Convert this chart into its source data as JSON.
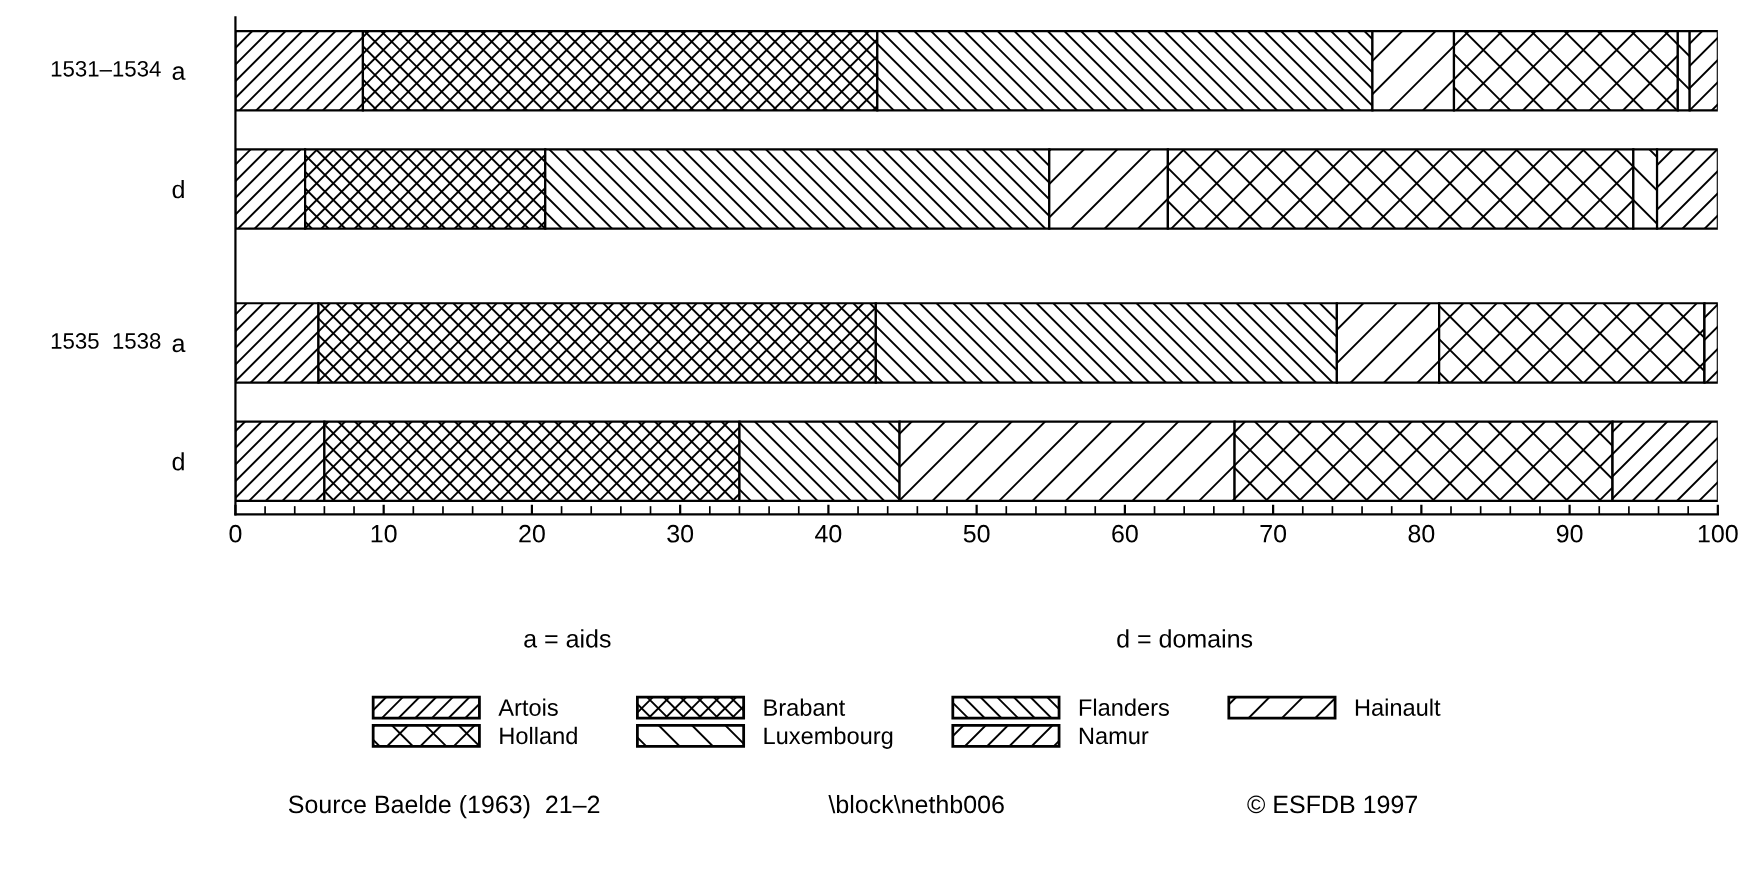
{
  "chart_data": {
    "type": "bar",
    "orientation": "horizontal",
    "stacked": true,
    "categories": [
      "a",
      "d",
      "a",
      "d"
    ],
    "series": [
      {
        "name": "Artois",
        "color": "#000000",
        "values": [
          8.6,
          4.7,
          5.6,
          6.0
        ]
      },
      {
        "name": "Brabant",
        "color": "#000000",
        "values": [
          34.7,
          16.2,
          37.6,
          28.0
        ]
      },
      {
        "name": "Flanders",
        "color": "#000000",
        "values": [
          33.4,
          34.0,
          31.1,
          10.8
        ]
      },
      {
        "name": "Hainault",
        "color": "#000000",
        "values": [
          5.5,
          8.0,
          6.9,
          22.6
        ]
      },
      {
        "name": "Holland",
        "color": "#000000",
        "values": [
          15.1,
          31.4,
          17.9,
          25.5
        ]
      },
      {
        "name": "Luxembourg",
        "color": "#000000",
        "values": [
          0.8,
          1.6,
          0,
          0
        ]
      },
      {
        "name": "Namur",
        "color": "#000000",
        "values": [
          1.9,
          4.1,
          0.9,
          7.1
        ]
      }
    ],
    "xlim": [
      0,
      100
    ],
    "xticks": [
      0,
      10,
      20,
      30,
      40,
      50,
      60,
      70,
      80,
      90,
      100
    ],
    "grid": false,
    "legend": "bottom",
    "annotations": [
      "1531–1534",
      "1535  1538",
      "a = aids",
      "d = domains",
      "Source Baelde (1963)  21–2",
      "\\block\\nethb006",
      "© ESFDB 1997"
    ]
  }
}
